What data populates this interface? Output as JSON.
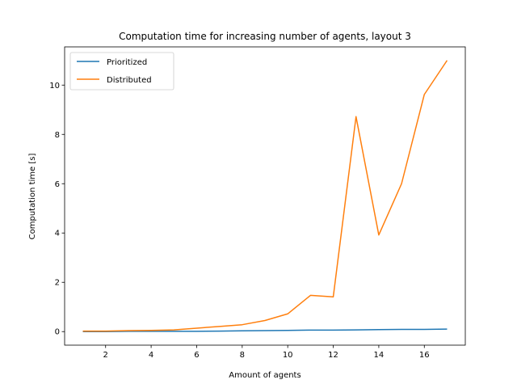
{
  "chart_data": {
    "type": "line",
    "title": "Computation time for increasing number of agents, layout 3",
    "xlabel": "Amount of agents",
    "ylabel": "Computation time [s]",
    "xlim": [
      0.2,
      17.8
    ],
    "ylim": [
      -0.55,
      11.55
    ],
    "xticks": [
      2,
      4,
      6,
      8,
      10,
      12,
      14,
      16
    ],
    "yticks": [
      0,
      2,
      4,
      6,
      8,
      10
    ],
    "legend_position": "upper-left",
    "x": [
      1,
      2,
      3,
      4,
      5,
      6,
      7,
      8,
      9,
      10,
      11,
      12,
      13,
      14,
      15,
      16,
      17
    ],
    "series": [
      {
        "name": "Prioritized",
        "color": "#1f77b4",
        "values": [
          0.0,
          0.0,
          0.01,
          0.01,
          0.01,
          0.01,
          0.02,
          0.03,
          0.04,
          0.05,
          0.06,
          0.06,
          0.07,
          0.08,
          0.09,
          0.09,
          0.1
        ]
      },
      {
        "name": "Distributed",
        "color": "#ff7f0e",
        "values": [
          0.02,
          0.02,
          0.04,
          0.05,
          0.07,
          0.14,
          0.21,
          0.28,
          0.45,
          0.72,
          1.47,
          1.41,
          8.72,
          3.92,
          6.0,
          9.62,
          11.0
        ]
      }
    ]
  }
}
